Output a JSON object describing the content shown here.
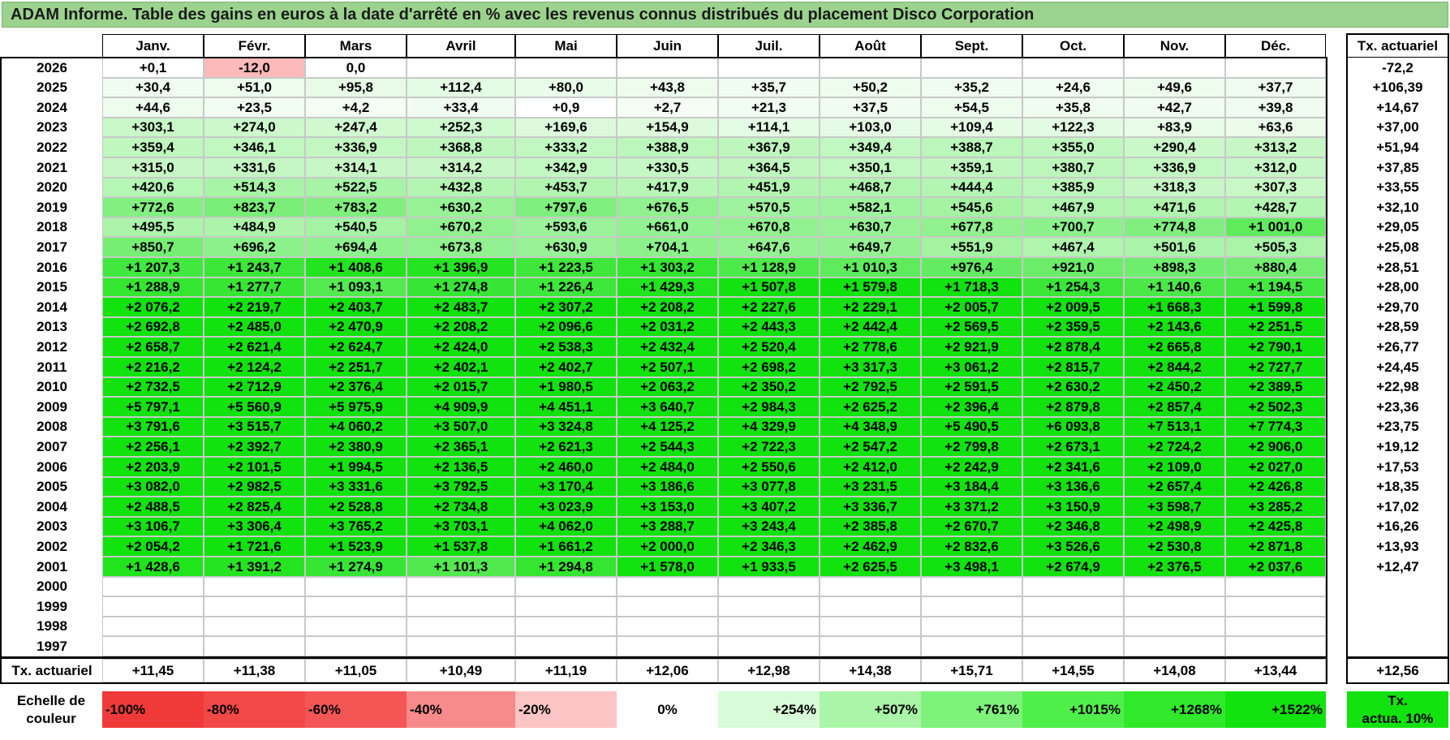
{
  "title": "ADAM Informe. Table des gains en euros à la date d'arrêté en % avec les revenus connus distribués du placement Disco Corporation",
  "months": [
    "Janv.",
    "Févr.",
    "Mars",
    "Avril",
    "Mai",
    "Juin",
    "Juil.",
    "Août",
    "Sept.",
    "Oct.",
    "Nov.",
    "Déc."
  ],
  "rate_header": "Tx. actuariel",
  "rows": [
    {
      "year": "2026",
      "values": [
        "+0,1",
        "-12,0",
        "0,0",
        "",
        "",
        "",
        "",
        "",
        "",
        "",
        "",
        ""
      ],
      "rate": "-72,2"
    },
    {
      "year": "2025",
      "values": [
        "+30,4",
        "+51,0",
        "+95,8",
        "+112,4",
        "+80,0",
        "+43,8",
        "+35,7",
        "+50,2",
        "+35,2",
        "+24,6",
        "+49,6",
        "+37,7"
      ],
      "rate": "+106,39"
    },
    {
      "year": "2024",
      "values": [
        "+44,6",
        "+23,5",
        "+4,2",
        "+33,4",
        "+0,9",
        "+2,7",
        "+21,3",
        "+37,5",
        "+54,5",
        "+35,8",
        "+42,7",
        "+39,8"
      ],
      "rate": "+14,67"
    },
    {
      "year": "2023",
      "values": [
        "+303,1",
        "+274,0",
        "+247,4",
        "+252,3",
        "+169,6",
        "+154,9",
        "+114,1",
        "+103,0",
        "+109,4",
        "+122,3",
        "+83,9",
        "+63,6"
      ],
      "rate": "+37,00"
    },
    {
      "year": "2022",
      "values": [
        "+359,4",
        "+346,1",
        "+336,9",
        "+368,8",
        "+333,2",
        "+388,9",
        "+367,9",
        "+349,4",
        "+388,7",
        "+355,0",
        "+290,4",
        "+313,2"
      ],
      "rate": "+51,94"
    },
    {
      "year": "2021",
      "values": [
        "+315,0",
        "+331,6",
        "+314,1",
        "+314,2",
        "+342,9",
        "+330,5",
        "+364,5",
        "+350,1",
        "+359,1",
        "+380,7",
        "+336,9",
        "+312,0"
      ],
      "rate": "+37,85"
    },
    {
      "year": "2020",
      "values": [
        "+420,6",
        "+514,3",
        "+522,5",
        "+432,8",
        "+453,7",
        "+417,9",
        "+451,9",
        "+468,7",
        "+444,4",
        "+385,9",
        "+318,3",
        "+307,3"
      ],
      "rate": "+33,55"
    },
    {
      "year": "2019",
      "values": [
        "+772,6",
        "+823,7",
        "+783,2",
        "+630,2",
        "+797,6",
        "+676,5",
        "+570,5",
        "+582,1",
        "+545,6",
        "+467,9",
        "+471,6",
        "+428,7"
      ],
      "rate": "+32,10"
    },
    {
      "year": "2018",
      "values": [
        "+495,5",
        "+484,9",
        "+540,5",
        "+670,2",
        "+593,6",
        "+661,0",
        "+670,8",
        "+630,7",
        "+677,8",
        "+700,7",
        "+774,8",
        "+1 001,0"
      ],
      "rate": "+29,05"
    },
    {
      "year": "2017",
      "values": [
        "+850,7",
        "+696,2",
        "+694,4",
        "+673,8",
        "+630,9",
        "+704,1",
        "+647,6",
        "+649,7",
        "+551,9",
        "+467,4",
        "+501,6",
        "+505,3"
      ],
      "rate": "+25,08"
    },
    {
      "year": "2016",
      "values": [
        "+1 207,3",
        "+1 243,7",
        "+1 408,6",
        "+1 396,9",
        "+1 223,5",
        "+1 303,2",
        "+1 128,9",
        "+1 010,3",
        "+976,4",
        "+921,0",
        "+898,3",
        "+880,4"
      ],
      "rate": "+28,51"
    },
    {
      "year": "2015",
      "values": [
        "+1 288,9",
        "+1 277,7",
        "+1 093,1",
        "+1 274,8",
        "+1 226,4",
        "+1 429,3",
        "+1 507,8",
        "+1 579,8",
        "+1 718,3",
        "+1 254,3",
        "+1 140,6",
        "+1 194,5"
      ],
      "rate": "+28,00"
    },
    {
      "year": "2014",
      "values": [
        "+2 076,2",
        "+2 219,7",
        "+2 403,7",
        "+2 483,7",
        "+2 307,2",
        "+2 208,2",
        "+2 227,6",
        "+2 229,1",
        "+2 005,7",
        "+2 009,5",
        "+1 668,3",
        "+1 599,8"
      ],
      "rate": "+29,70"
    },
    {
      "year": "2013",
      "values": [
        "+2 692,8",
        "+2 485,0",
        "+2 470,9",
        "+2 208,2",
        "+2 096,6",
        "+2 031,2",
        "+2 443,3",
        "+2 442,4",
        "+2 569,5",
        "+2 359,5",
        "+2 143,6",
        "+2 251,5"
      ],
      "rate": "+28,59"
    },
    {
      "year": "2012",
      "values": [
        "+2 658,7",
        "+2 621,4",
        "+2 624,7",
        "+2 424,0",
        "+2 538,3",
        "+2 432,4",
        "+2 520,4",
        "+2 778,6",
        "+2 921,9",
        "+2 878,4",
        "+2 665,8",
        "+2 790,1"
      ],
      "rate": "+26,77"
    },
    {
      "year": "2011",
      "values": [
        "+2 216,2",
        "+2 124,2",
        "+2 251,7",
        "+2 402,1",
        "+2 402,7",
        "+2 507,1",
        "+2 698,2",
        "+3 317,3",
        "+3 061,2",
        "+2 815,7",
        "+2 844,2",
        "+2 727,7"
      ],
      "rate": "+24,45"
    },
    {
      "year": "2010",
      "values": [
        "+2 732,5",
        "+2 712,9",
        "+2 376,4",
        "+2 015,7",
        "+1 980,5",
        "+2 063,2",
        "+2 350,2",
        "+2 792,5",
        "+2 591,5",
        "+2 630,2",
        "+2 450,2",
        "+2 389,5"
      ],
      "rate": "+22,98"
    },
    {
      "year": "2009",
      "values": [
        "+5 797,1",
        "+5 560,9",
        "+5 975,9",
        "+4 909,9",
        "+4 451,1",
        "+3 640,7",
        "+2 984,3",
        "+2 625,2",
        "+2 396,4",
        "+2 879,8",
        "+2 857,4",
        "+2 502,3"
      ],
      "rate": "+23,36"
    },
    {
      "year": "2008",
      "values": [
        "+3 791,6",
        "+3 515,7",
        "+4 060,2",
        "+3 507,0",
        "+3 324,8",
        "+4 125,2",
        "+4 329,9",
        "+4 348,9",
        "+5 490,5",
        "+6 093,8",
        "+7 513,1",
        "+7 774,3"
      ],
      "rate": "+23,75"
    },
    {
      "year": "2007",
      "values": [
        "+2 256,1",
        "+2 392,7",
        "+2 380,9",
        "+2 365,1",
        "+2 621,3",
        "+2 544,3",
        "+2 722,3",
        "+2 547,2",
        "+2 799,8",
        "+2 673,1",
        "+2 724,2",
        "+2 906,0"
      ],
      "rate": "+19,12"
    },
    {
      "year": "2006",
      "values": [
        "+2 203,9",
        "+2 101,5",
        "+1 994,5",
        "+2 136,5",
        "+2 460,0",
        "+2 484,0",
        "+2 550,6",
        "+2 412,0",
        "+2 242,9",
        "+2 341,6",
        "+2 109,0",
        "+2 027,0"
      ],
      "rate": "+17,53"
    },
    {
      "year": "2005",
      "values": [
        "+3 082,0",
        "+2 982,5",
        "+3 331,6",
        "+3 792,5",
        "+3 170,4",
        "+3 186,6",
        "+3 077,8",
        "+3 231,5",
        "+3 184,4",
        "+3 136,6",
        "+2 657,4",
        "+2 426,8"
      ],
      "rate": "+18,35"
    },
    {
      "year": "2004",
      "values": [
        "+2 488,5",
        "+2 825,4",
        "+2 528,8",
        "+2 734,8",
        "+3 023,9",
        "+3 153,0",
        "+3 407,2",
        "+3 336,7",
        "+3 371,2",
        "+3 150,9",
        "+3 598,7",
        "+3 285,2"
      ],
      "rate": "+17,02"
    },
    {
      "year": "2003",
      "values": [
        "+3 106,7",
        "+3 306,4",
        "+3 765,2",
        "+3 703,1",
        "+4 062,0",
        "+3 288,7",
        "+3 243,4",
        "+2 385,8",
        "+2 670,7",
        "+2 346,8",
        "+2 498,9",
        "+2 425,8"
      ],
      "rate": "+16,26"
    },
    {
      "year": "2002",
      "values": [
        "+2 054,2",
        "+1 721,6",
        "+1 523,9",
        "+1 537,8",
        "+1 661,2",
        "+2 000,0",
        "+2 346,3",
        "+2 462,9",
        "+2 832,6",
        "+3 526,6",
        "+2 530,8",
        "+2 871,8"
      ],
      "rate": "+13,93"
    },
    {
      "year": "2001",
      "values": [
        "+1 428,6",
        "+1 391,2",
        "+1 274,9",
        "+1 101,3",
        "+1 294,8",
        "+1 578,0",
        "+1 933,5",
        "+2 625,5",
        "+3 498,1",
        "+2 674,9",
        "+2 376,5",
        "+2 037,6"
      ],
      "rate": "+12,47"
    },
    {
      "year": "2000",
      "values": [
        "",
        "",
        "",
        "",
        "",
        "",
        "",
        "",
        "",
        "",
        "",
        ""
      ],
      "rate": ""
    },
    {
      "year": "1999",
      "values": [
        "",
        "",
        "",
        "",
        "",
        "",
        "",
        "",
        "",
        "",
        "",
        ""
      ],
      "rate": ""
    },
    {
      "year": "1998",
      "values": [
        "",
        "",
        "",
        "",
        "",
        "",
        "",
        "",
        "",
        "",
        "",
        ""
      ],
      "rate": ""
    },
    {
      "year": "1997",
      "values": [
        "",
        "",
        "",
        "",
        "",
        "",
        "",
        "",
        "",
        "",
        "",
        ""
      ],
      "rate": ""
    }
  ],
  "totals": {
    "label": "Tx. actuariel",
    "values": [
      "+11,45",
      "+11,38",
      "+11,05",
      "+10,49",
      "+11,19",
      "+12,06",
      "+12,98",
      "+14,38",
      "+15,71",
      "+14,55",
      "+14,08",
      "+13,44"
    ],
    "rate": "+12,56"
  },
  "legend": {
    "label": "Echelle de\ncouleur",
    "items": [
      {
        "text": "-100%",
        "color": "#f03a3a"
      },
      {
        "text": "-80%",
        "color": "#f24848"
      },
      {
        "text": "-60%",
        "color": "#f45656"
      },
      {
        "text": "-40%",
        "color": "#f78b8b"
      },
      {
        "text": "-20%",
        "color": "#fcc4c4"
      },
      {
        "text": "0%",
        "color": "#ffffff"
      },
      {
        "text": "+254%",
        "color": "#d8fbd8"
      },
      {
        "text": "+507%",
        "color": "#aaf5a8"
      },
      {
        "text": "+761%",
        "color": "#7ef27a"
      },
      {
        "text": "+1015%",
        "color": "#4fef4a"
      },
      {
        "text": "+1268%",
        "color": "#2fe92a"
      },
      {
        "text": "+1522%",
        "color": "#12e20e"
      }
    ],
    "rate_label": "Tx.\nactua. 10%",
    "rate_color": "#12e20e"
  },
  "colors": {
    "title_bg": "#9bd38e"
  }
}
